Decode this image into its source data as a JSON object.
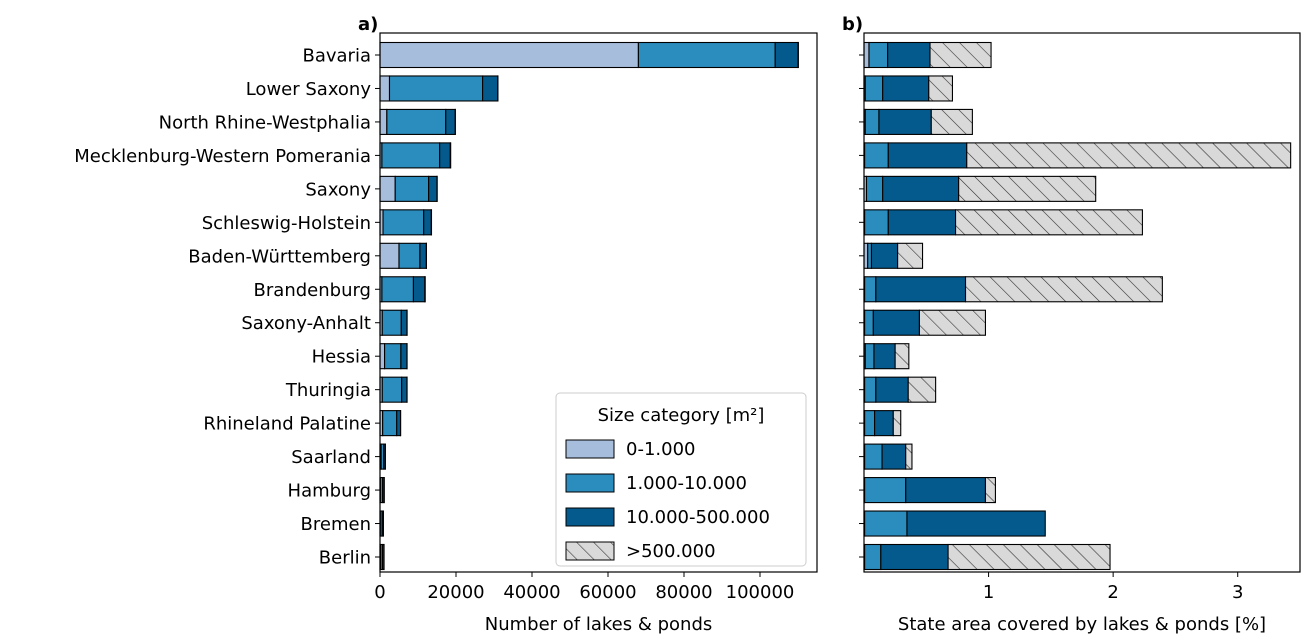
{
  "chart_data": [
    {
      "type": "bar",
      "orientation": "horizontal",
      "stacked": true,
      "panel_label": "a)",
      "xlabel": "Number of lakes & ponds",
      "xlim": [
        0,
        115000
      ],
      "xticks": [
        0,
        20000,
        40000,
        60000,
        80000,
        100000
      ],
      "xtick_labels": [
        "0",
        "20000",
        "40000",
        "60000",
        "80000",
        "100000"
      ],
      "categories": [
        "Bavaria",
        "Lower Saxony",
        "North Rhine-Westphalia",
        "Mecklenburg-Western Pomerania",
        "Saxony",
        "Schleswig-Holstein",
        "Baden-Württemberg",
        "Brandenburg",
        "Saxony-Anhalt",
        "Hessia",
        "Thuringia",
        "Rhineland Palatine",
        "Saarland",
        "Hamburg",
        "Bremen",
        "Berlin"
      ],
      "series": [
        {
          "name": "0-1.000",
          "color": "#a6bddb",
          "values": [
            68000,
            2500,
            1800,
            500,
            4000,
            800,
            5000,
            500,
            600,
            1200,
            600,
            700,
            300,
            100,
            80,
            150
          ]
        },
        {
          "name": "1.000-10.000",
          "color": "#2b8cbe",
          "values": [
            36000,
            24500,
            15500,
            15200,
            8800,
            10700,
            5500,
            8300,
            5000,
            4300,
            5100,
            3700,
            700,
            600,
            500,
            500
          ]
        },
        {
          "name": "10.000-500.000",
          "color": "#045a8d",
          "values": [
            6000,
            4000,
            2500,
            2800,
            2200,
            2000,
            1700,
            3000,
            1500,
            1600,
            1400,
            1000,
            400,
            400,
            300,
            400
          ]
        },
        {
          "name": ">500.000",
          "color": "#d9d9d9",
          "hatch": true,
          "values": [
            100,
            30,
            30,
            100,
            50,
            50,
            20,
            100,
            30,
            20,
            20,
            20,
            5,
            5,
            5,
            10
          ]
        }
      ],
      "legend": {
        "title": "Size category [m²]",
        "placement": "bottom-right"
      }
    },
    {
      "type": "bar",
      "orientation": "horizontal",
      "stacked": true,
      "panel_label": "b)",
      "xlabel": "State area covered by lakes & ponds [%]",
      "xlim": [
        0,
        3.5
      ],
      "xticks": [
        1,
        2,
        3
      ],
      "xtick_labels": [
        "1",
        "2",
        "3"
      ],
      "categories": [
        "Bavaria",
        "Lower Saxony",
        "North Rhine-Westphalia",
        "Mecklenburg-Western Pomerania",
        "Saxony",
        "Schleswig-Holstein",
        "Baden-Württemberg",
        "Brandenburg",
        "Saxony-Anhalt",
        "Hessia",
        "Thuringia",
        "Rhineland Palatine",
        "Saarland",
        "Hamburg",
        "Bremen",
        "Berlin"
      ],
      "series": [
        {
          "name": "0-1.000",
          "color": "#a6bddb",
          "values": [
            0.04,
            0.01,
            0.01,
            0.005,
            0.02,
            0.005,
            0.03,
            0.005,
            0.005,
            0.01,
            0.005,
            0.005,
            0.005,
            0.005,
            0.005,
            0.005
          ]
        },
        {
          "name": "1.000-10.000",
          "color": "#2b8cbe",
          "values": [
            0.15,
            0.14,
            0.11,
            0.19,
            0.13,
            0.19,
            0.03,
            0.09,
            0.07,
            0.07,
            0.09,
            0.08,
            0.14,
            0.33,
            0.34,
            0.13
          ]
        },
        {
          "name": "10.000-500.000",
          "color": "#045a8d",
          "values": [
            0.34,
            0.37,
            0.42,
            0.63,
            0.61,
            0.54,
            0.21,
            0.72,
            0.37,
            0.17,
            0.26,
            0.15,
            0.19,
            0.64,
            1.11,
            0.54
          ]
        },
        {
          "name": ">500.000",
          "color": "#d9d9d9",
          "hatch": true,
          "values": [
            0.49,
            0.19,
            0.33,
            2.6,
            1.1,
            1.5,
            0.2,
            1.58,
            0.53,
            0.11,
            0.22,
            0.06,
            0.05,
            0.08,
            0.0,
            1.3
          ]
        }
      ]
    }
  ]
}
